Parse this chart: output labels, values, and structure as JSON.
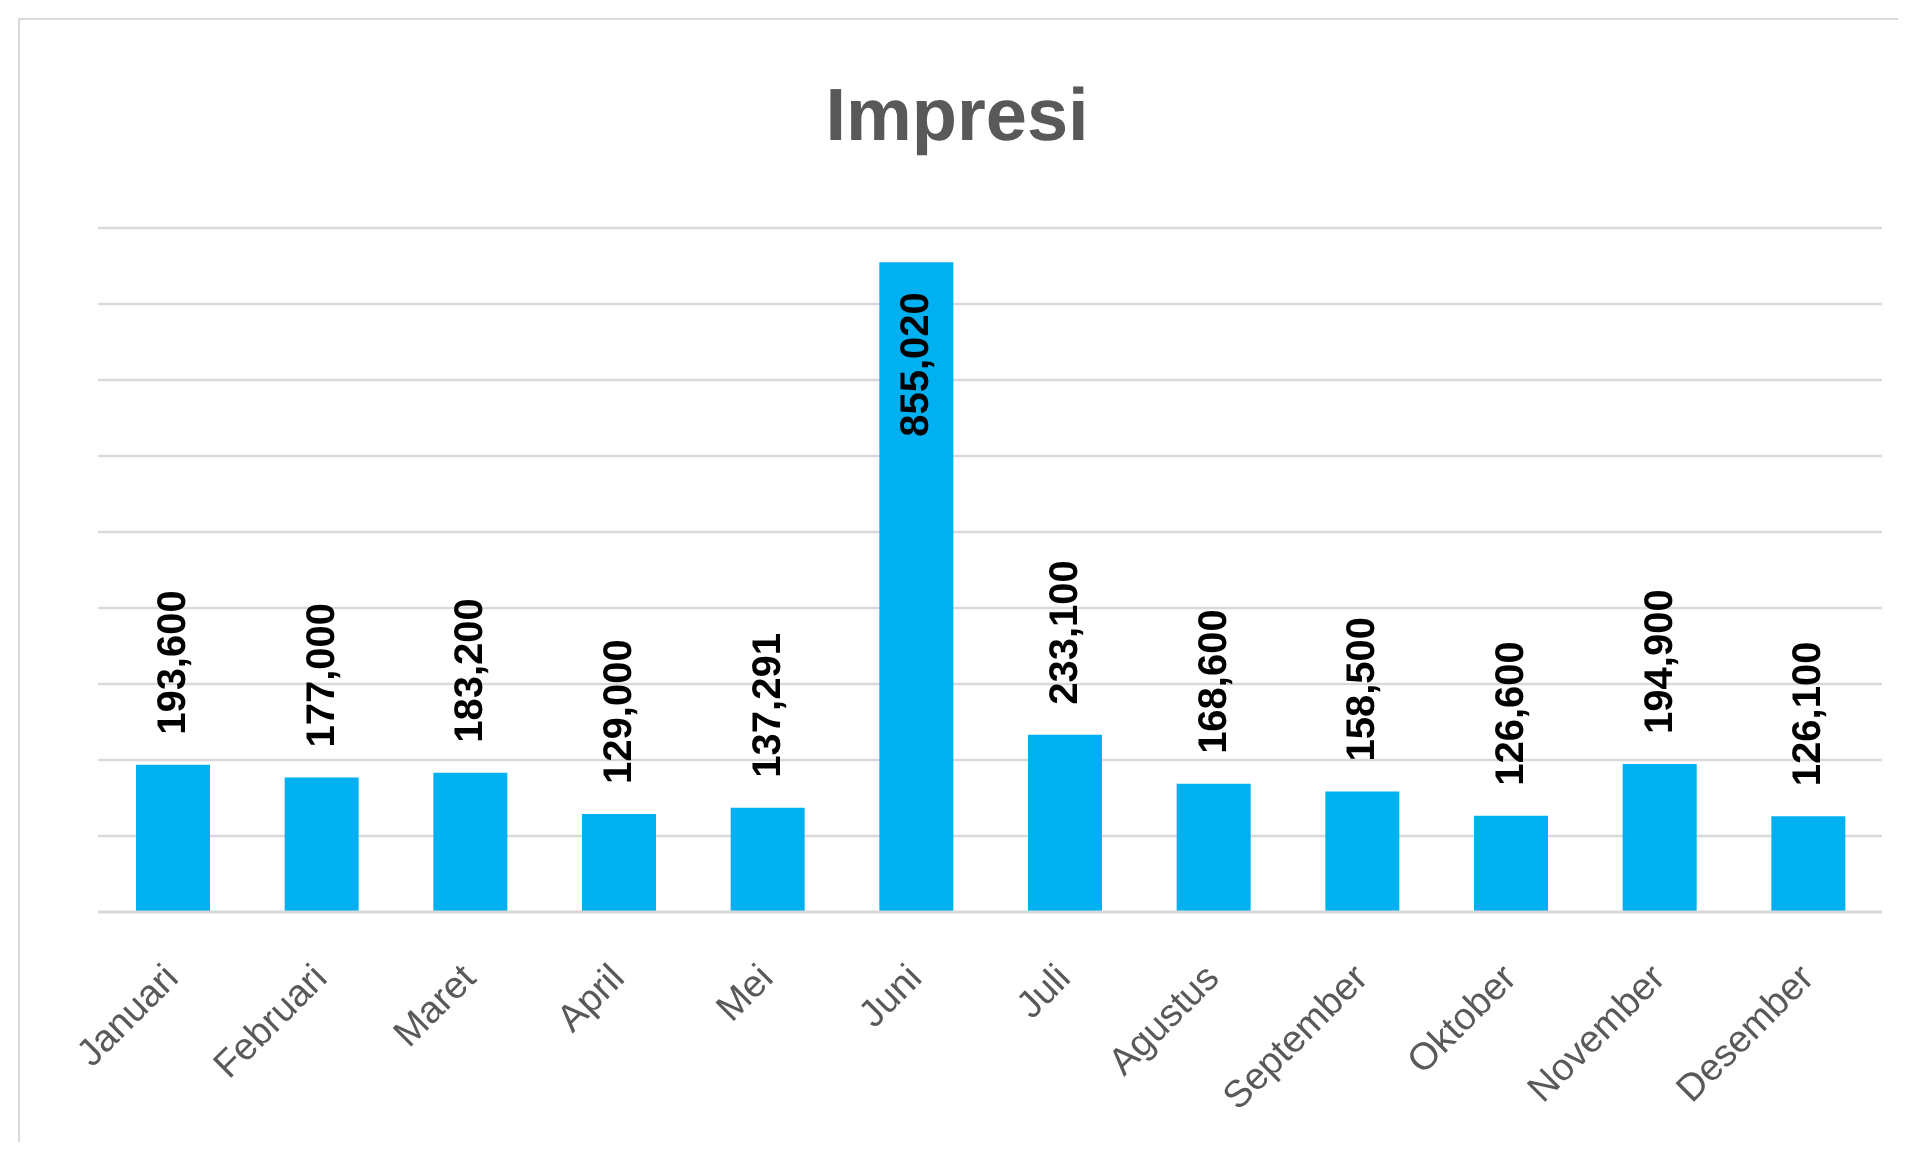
{
  "chart_data": {
    "type": "bar",
    "title": "Impresi",
    "categories": [
      "Januari",
      "Februari",
      "Maret",
      "April",
      "Mei",
      "Juni",
      "Juli",
      "Agustus",
      "September",
      "Oktober",
      "November",
      "Desember"
    ],
    "values": [
      193600,
      177000,
      183200,
      129000,
      137291,
      855020,
      233100,
      168600,
      158500,
      126600,
      194900,
      126100
    ],
    "value_labels": [
      "193,600",
      "177,000",
      "183,200",
      "129,000",
      "137,291",
      "855,020",
      "233,100",
      "168,600",
      "158,500",
      "126,600",
      "194,900",
      "126,100"
    ],
    "color": "#00b0f0",
    "ylim": [
      0,
      900000
    ],
    "yticks": [
      {
        "value": 0,
        "label": null
      },
      {
        "value": 100000,
        "label": null
      },
      {
        "value": 200000,
        "label": null
      },
      {
        "value": 300000,
        "label": null
      },
      {
        "value": 400000,
        "label": null
      },
      {
        "value": 500000,
        "label": null
      },
      {
        "value": 600000,
        "label": null
      },
      {
        "value": 700000,
        "label": null
      },
      {
        "value": 800000,
        "label": null
      },
      {
        "value": 900000,
        "label": null
      }
    ],
    "grid": "y",
    "tick_labels": "x"
  }
}
